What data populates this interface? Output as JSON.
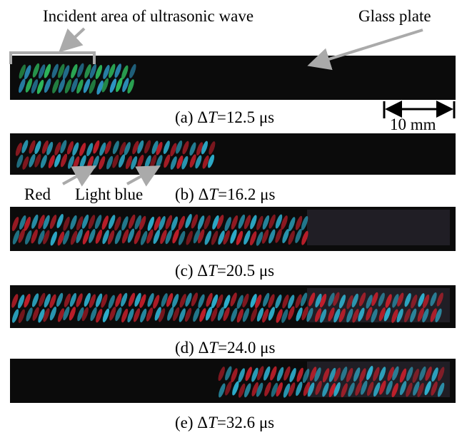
{
  "annotations": {
    "incident": "Incident area of ultrasonic wave",
    "glass": "Glass plate",
    "scale": "10 mm",
    "red": "Red",
    "light_blue": "Light blue"
  },
  "panels": [
    {
      "prefix": "(a) Δ",
      "symbol": "T",
      "suffix": "=12.5 μs"
    },
    {
      "prefix": "(b) Δ",
      "symbol": "T",
      "suffix": "=16.2 μs"
    },
    {
      "prefix": "(c) Δ",
      "symbol": "T",
      "suffix": "=20.5 μs"
    },
    {
      "prefix": "(d) Δ",
      "symbol": "T",
      "suffix": "=24.0 μs"
    },
    {
      "prefix": "(e) Δ",
      "symbol": "T",
      "suffix": "=32.6 μs"
    }
  ]
}
